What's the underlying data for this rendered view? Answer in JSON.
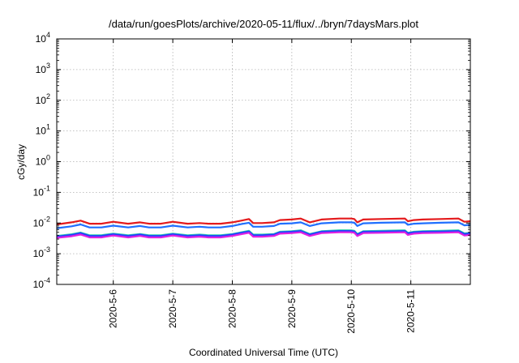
{
  "chart_data": {
    "type": "line",
    "title": "/data/run/goesPlots/archive/2020-05-11/flux/../bryn/7daysMars.plot",
    "xlabel": "Coordinated Universal Time (UTC)",
    "ylabel": "cGy/day",
    "y_scale": "log",
    "ylim": [
      0.0001,
      10000
    ],
    "xlim": [
      5.05,
      12.0
    ],
    "x_units": "day of May 2020",
    "y_ticks": [
      {
        "value": 0.0001,
        "base": "10",
        "exp": "-4"
      },
      {
        "value": 0.001,
        "base": "10",
        "exp": "-3"
      },
      {
        "value": 0.01,
        "base": "10",
        "exp": "-2"
      },
      {
        "value": 0.1,
        "base": "10",
        "exp": "-1"
      },
      {
        "value": 1,
        "base": "10",
        "exp": "0"
      },
      {
        "value": 10,
        "base": "10",
        "exp": "1"
      },
      {
        "value": 100,
        "base": "10",
        "exp": "2"
      },
      {
        "value": 1000,
        "base": "10",
        "exp": "3"
      },
      {
        "value": 10000,
        "base": "10",
        "exp": "4"
      }
    ],
    "x_ticks": [
      {
        "value": 6,
        "label": "2020-5-6"
      },
      {
        "value": 7,
        "label": "2020-5-7"
      },
      {
        "value": 8,
        "label": "2020-5-8"
      },
      {
        "value": 9,
        "label": "2020-5-9"
      },
      {
        "value": 10,
        "label": "2020-5-10"
      },
      {
        "value": 11,
        "label": "2020-5-11"
      }
    ],
    "grid": true,
    "legend": "none",
    "x": [
      5.05,
      5.3,
      5.45,
      5.6,
      5.8,
      6.0,
      6.25,
      6.45,
      6.6,
      6.8,
      7.0,
      7.25,
      7.45,
      7.6,
      7.8,
      8.0,
      8.15,
      8.28,
      8.35,
      8.5,
      8.7,
      8.8,
      9.0,
      9.15,
      9.3,
      9.5,
      9.8,
      10.0,
      10.05,
      10.1,
      10.2,
      10.5,
      10.9,
      10.95,
      11.05,
      11.2,
      11.5,
      11.8,
      11.9,
      12.0
    ],
    "series": [
      {
        "color": "#e41a1c",
        "values": [
          0.009,
          0.0105,
          0.012,
          0.0095,
          0.0095,
          0.011,
          0.0095,
          0.0105,
          0.0095,
          0.0095,
          0.011,
          0.0095,
          0.01,
          0.0095,
          0.0095,
          0.0105,
          0.012,
          0.0135,
          0.01,
          0.01,
          0.0105,
          0.0125,
          0.013,
          0.014,
          0.0105,
          0.013,
          0.014,
          0.014,
          0.0135,
          0.0105,
          0.013,
          0.0135,
          0.014,
          0.0115,
          0.0125,
          0.013,
          0.0135,
          0.014,
          0.011,
          0.0115
        ]
      },
      {
        "color": "#1f6fff",
        "values": [
          0.0068,
          0.0078,
          0.009,
          0.0072,
          0.0072,
          0.0082,
          0.0072,
          0.008,
          0.0072,
          0.0072,
          0.0082,
          0.0072,
          0.0076,
          0.0072,
          0.0072,
          0.008,
          0.0092,
          0.0102,
          0.0076,
          0.0076,
          0.008,
          0.0095,
          0.0098,
          0.0105,
          0.008,
          0.0098,
          0.0105,
          0.0105,
          0.0102,
          0.008,
          0.0098,
          0.0102,
          0.0105,
          0.0088,
          0.0095,
          0.0098,
          0.0102,
          0.0105,
          0.0084,
          0.0088
        ]
      },
      {
        "color": "#2fd0a8",
        "values": [
          0.0038,
          0.0043,
          0.0049,
          0.004,
          0.004,
          0.0045,
          0.004,
          0.0044,
          0.004,
          0.004,
          0.0045,
          0.004,
          0.0042,
          0.004,
          0.004,
          0.0044,
          0.005,
          0.0056,
          0.0042,
          0.0042,
          0.0044,
          0.0052,
          0.0054,
          0.0058,
          0.0044,
          0.0054,
          0.0058,
          0.0058,
          0.0056,
          0.0044,
          0.0054,
          0.0056,
          0.0058,
          0.0048,
          0.0052,
          0.0054,
          0.0056,
          0.0058,
          0.0046,
          0.0048
        ]
      },
      {
        "color": "#2040ff",
        "values": [
          0.0036,
          0.0041,
          0.0047,
          0.0038,
          0.0038,
          0.0043,
          0.0038,
          0.0042,
          0.0038,
          0.0038,
          0.0043,
          0.0038,
          0.004,
          0.0038,
          0.0038,
          0.0042,
          0.0048,
          0.0053,
          0.004,
          0.004,
          0.0042,
          0.005,
          0.0052,
          0.0055,
          0.0042,
          0.0052,
          0.0055,
          0.0055,
          0.0053,
          0.0042,
          0.0052,
          0.0053,
          0.0055,
          0.0046,
          0.005,
          0.0052,
          0.0053,
          0.0055,
          0.0044,
          0.0046
        ]
      },
      {
        "color": "#e020e0",
        "values": [
          0.0033,
          0.0037,
          0.0042,
          0.0034,
          0.0034,
          0.0039,
          0.0034,
          0.0038,
          0.0034,
          0.0034,
          0.0039,
          0.0034,
          0.0036,
          0.0034,
          0.0034,
          0.0038,
          0.0043,
          0.0048,
          0.0036,
          0.0036,
          0.0038,
          0.0045,
          0.0047,
          0.005,
          0.0038,
          0.0047,
          0.005,
          0.005,
          0.0048,
          0.0038,
          0.0047,
          0.0048,
          0.005,
          0.0041,
          0.0045,
          0.0047,
          0.0048,
          0.005,
          0.0039,
          0.0041
        ]
      }
    ]
  }
}
